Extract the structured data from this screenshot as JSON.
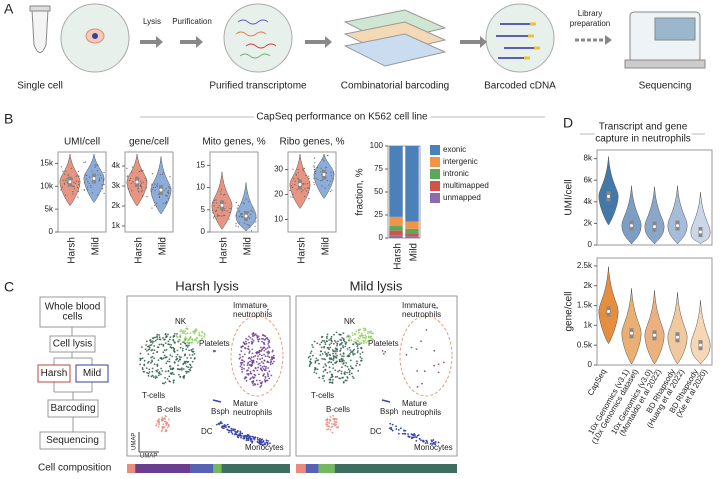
{
  "panel_letters": [
    "A",
    "B",
    "C",
    "D"
  ],
  "workflow": {
    "steps": [
      "Single cell",
      "Purified transcriptome",
      "Combinatorial barcoding",
      "Barcoded cDNA",
      "Sequencing"
    ],
    "arrows": [
      "Lysis",
      "Purification",
      [
        "Library",
        "preparation"
      ]
    ]
  },
  "panel_b_title": "CapSeq performance on K562 cell line",
  "panel_d_title": [
    "Transcript and gene",
    "capture in neutrophils"
  ],
  "chart_data": [
    {
      "type": "violin",
      "title": "UMI/cell",
      "categories": [
        "Harsh",
        "Mild"
      ],
      "values": [
        11000,
        11700
      ],
      "colors": [
        "#e48a74",
        "#7fa3d6"
      ],
      "ylim": [
        0,
        17500
      ],
      "yticks": [
        0,
        {
          "value": 5000,
          "label": "5k"
        },
        {
          "value": 10000,
          "label": "10k"
        },
        {
          "value": 15000,
          "label": "15k"
        }
      ]
    },
    {
      "type": "violin",
      "title": "gene/cell",
      "categories": [
        "Harsh",
        "Mild"
      ],
      "values": [
        3200,
        2800
      ],
      "colors": [
        "#e48a74",
        "#7fa3d6"
      ],
      "ylim": [
        700,
        4700
      ],
      "yticks": [
        {
          "value": 1000,
          "label": "1k"
        },
        {
          "value": 2000,
          "label": "2k"
        },
        {
          "value": 3000,
          "label": "3k"
        },
        {
          "value": 4000,
          "label": "4k"
        }
      ]
    },
    {
      "type": "violin",
      "title": "Mito genes, %",
      "categories": [
        "Harsh",
        "Mild"
      ],
      "values": [
        6,
        3.6
      ],
      "colors": [
        "#e48a74",
        "#7fa3d6"
      ],
      "ylim": [
        0,
        18
      ],
      "yticks": [
        0,
        5,
        10,
        15
      ]
    },
    {
      "type": "violin",
      "title": "Ribo genes, %",
      "categories": [
        "Harsh",
        "Mild"
      ],
      "values": [
        24,
        28
      ],
      "colors": [
        "#e48a74",
        "#7fa3d6"
      ],
      "ylim": [
        5,
        37
      ],
      "yticks": [
        10,
        20,
        30
      ]
    },
    {
      "type": "stacked-bar",
      "ylabel": "fraction, %",
      "categories": [
        "Harsh",
        "Mild"
      ],
      "ylim": [
        0,
        100
      ],
      "yticks": [
        0,
        25,
        50,
        75,
        100
      ],
      "series": [
        {
          "name": "unmapped",
          "color": "#8e6bb0",
          "values": [
            3,
            2
          ]
        },
        {
          "name": "multimapped",
          "color": "#d3524a",
          "values": [
            5,
            3
          ]
        },
        {
          "name": "intronic",
          "color": "#5ea65a",
          "values": [
            5,
            5
          ]
        },
        {
          "name": "intergenic",
          "color": "#f0944a",
          "values": [
            10,
            8
          ]
        },
        {
          "name": "exonic",
          "color": "#4c80b8",
          "values": [
            77,
            82
          ]
        }
      ]
    },
    {
      "type": "violin",
      "ylabel": "UMI/cell",
      "values": [
        4500,
        1800,
        1700,
        1800,
        1200
      ],
      "colors": [
        "#2f6a9f",
        "#6e94bf",
        "#7d9cc2",
        "#9cb5d4",
        "#c5d3e6"
      ],
      "ylim": [
        0,
        8800
      ],
      "yticks": [
        0,
        {
          "value": 2000,
          "label": "2k"
        },
        {
          "value": 4000,
          "label": "4k"
        },
        {
          "value": 6000,
          "label": "6k"
        },
        {
          "value": 8000,
          "label": "8k"
        }
      ]
    },
    {
      "type": "violin",
      "ylabel": "gene/cell",
      "values": [
        1350,
        800,
        750,
        700,
        500
      ],
      "colors": [
        "#e2822a",
        "#e8a664",
        "#eaa870",
        "#efc393",
        "#f4d3ad"
      ],
      "categories": [
        [
          "CapSeq"
        ],
        [
          "10x Genomics (v3.1)",
          "(10x Genomics dataset)"
        ],
        [
          "10x Genomics (v3.0)",
          "(Montaldo et al 2022)"
        ],
        [
          "BD Rhapsody",
          "(Huang et al 2022)"
        ],
        [
          "BD Rhapsody",
          "(Xie et al 2020)"
        ]
      ],
      "ylim": [
        0,
        2700
      ],
      "yticks": [
        0,
        {
          "value": 500,
          "label": "0.5k"
        },
        {
          "value": 1000,
          "label": "1k"
        },
        {
          "value": 1500,
          "label": "1.5k"
        },
        {
          "value": 2000,
          "label": "2k"
        },
        {
          "value": 2500,
          "label": "2.5k"
        }
      ]
    },
    {
      "type": "stacked-hbar",
      "label": "Cell composition",
      "bars": [
        {
          "values": [
            5,
            34,
            14,
            5,
            42
          ],
          "colors": [
            "#e98b7d",
            "#6a3d8f",
            "#5762b5",
            "#74b95f",
            "#3d6e60"
          ]
        },
        {
          "values": [
            6,
            8,
            10,
            76
          ],
          "colors": [
            "#e98b7d",
            "#5762b5",
            "#74b95f",
            "#3d6e60"
          ]
        }
      ]
    }
  ],
  "flowchart": {
    "nodes": [
      [
        "Whole blood",
        "cells"
      ],
      [
        "Cell lysis"
      ],
      [
        "Harsh"
      ],
      [
        "Mild"
      ],
      [
        "Barcoding"
      ],
      [
        "Sequencing"
      ]
    ]
  },
  "umap": {
    "axis_labels": [
      "UMAP",
      "UMAP"
    ],
    "panels": [
      {
        "title": "Harsh lysis",
        "color": "#c0443c",
        "labels": [
          [
            "NK"
          ],
          [
            "Platelets"
          ],
          [
            "Immature",
            "neutrophils"
          ],
          [
            "T-cells"
          ],
          [
            "Mature",
            "neutrophils"
          ],
          [
            "Bsph"
          ],
          [
            "B-cells"
          ],
          [
            "DC"
          ],
          [
            "Monocytes"
          ]
        ]
      },
      {
        "title": "Mild lysis",
        "color": "#3a3f9a",
        "labels": [
          [
            "NK"
          ],
          [
            "Platelets"
          ],
          [
            "Immature",
            "neutrophils"
          ],
          [
            "T-cells"
          ],
          [
            "Mature",
            "neutrophils"
          ],
          [
            "Bsph"
          ],
          [
            "B-cells"
          ],
          [
            "DC"
          ],
          [
            "Monocytes"
          ]
        ]
      }
    ]
  }
}
